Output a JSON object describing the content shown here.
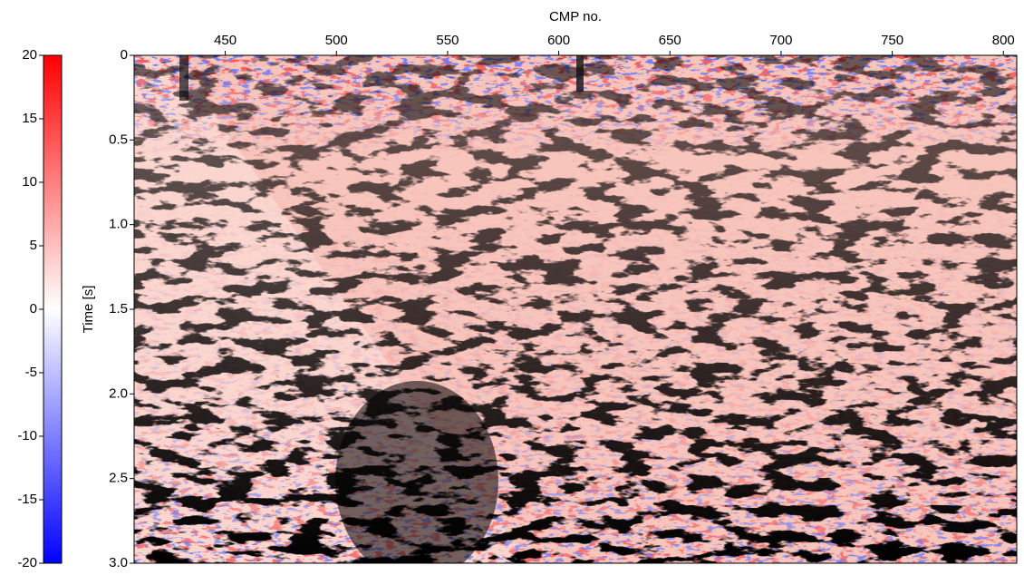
{
  "chart_data": {
    "type": "heatmap",
    "xlabel": "CMP no.",
    "ylabel": "Time [s]",
    "xlim": [
      409,
      806
    ],
    "xticks": [
      450,
      500,
      550,
      600,
      650,
      700,
      750,
      800
    ],
    "ylim": [
      0,
      3
    ],
    "yticks": [
      0,
      0.5,
      {
        "value": 1,
        "label": "1.0"
      },
      1.5,
      {
        "value": 2,
        "label": "2.0"
      },
      2.5,
      {
        "value": 3,
        "label": "3.0"
      }
    ],
    "clim": [
      -20,
      20
    ],
    "cticks": [
      20,
      15,
      10,
      5,
      0,
      -5,
      -10,
      -15,
      -20
    ],
    "colormap": [
      "#0000ff",
      "#ffffff",
      "#ff0000"
    ]
  }
}
